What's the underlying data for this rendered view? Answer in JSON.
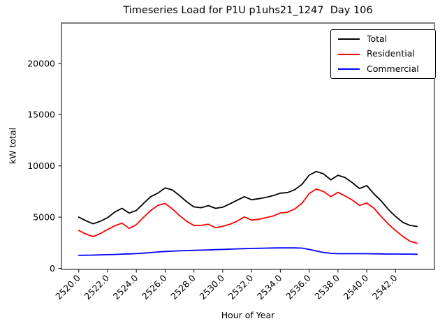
{
  "title": "Timeseries Load for P1U p1uhs21_1247  Day 106",
  "xlabel": "Hour of Year",
  "ylabel": "kW total",
  "chart_data": {
    "type": "line",
    "title": "Timeseries Load for P1U p1uhs21_1247  Day 106",
    "xlabel": "Hour of Year",
    "ylabel": "kW total",
    "grid": false,
    "legend_position": "upper right",
    "xlim": [
      2518.8,
      2544.7
    ],
    "ylim": [
      -100,
      23950
    ],
    "xtick_values": [
      2520,
      2522,
      2524,
      2526,
      2528,
      2530,
      2532,
      2534,
      2536,
      2538,
      2540,
      2542
    ],
    "xtick_labels": [
      "2520.0",
      "2522.0",
      "2524.0",
      "2526.0",
      "2528.0",
      "2530.0",
      "2532.0",
      "2534.0",
      "2536.0",
      "2538.0",
      "2540.0",
      "2542.0"
    ],
    "ytick_values": [
      0,
      5000,
      10000,
      15000,
      20000
    ],
    "ytick_labels": [
      "0",
      "5000",
      "10000",
      "15000",
      "20000"
    ],
    "x": [
      2520.0,
      2520.5,
      2521.0,
      2521.5,
      2522.0,
      2522.5,
      2523.0,
      2523.5,
      2524.0,
      2524.5,
      2525.0,
      2525.5,
      2526.0,
      2526.5,
      2527.0,
      2527.5,
      2528.0,
      2528.5,
      2529.0,
      2529.5,
      2530.0,
      2530.5,
      2531.0,
      2531.5,
      2532.0,
      2532.5,
      2533.0,
      2533.5,
      2534.0,
      2534.5,
      2535.0,
      2535.5,
      2536.0,
      2536.5,
      2537.0,
      2537.5,
      2538.0,
      2538.5,
      2539.0,
      2539.5,
      2540.0,
      2540.5,
      2541.0,
      2541.5,
      2542.0,
      2542.5,
      2543.0,
      2543.5
    ],
    "series": [
      {
        "name": "Total",
        "color": "#000000",
        "values": [
          5000,
          4650,
          4350,
          4600,
          4950,
          5500,
          5860,
          5400,
          5650,
          6340,
          7000,
          7350,
          7850,
          7650,
          7100,
          6500,
          6000,
          5920,
          6130,
          5860,
          5970,
          6300,
          6650,
          7000,
          6700,
          6800,
          6930,
          7100,
          7340,
          7400,
          7680,
          8200,
          9100,
          9460,
          9230,
          8640,
          9090,
          8860,
          8360,
          7790,
          8080,
          7270,
          6590,
          5750,
          5070,
          4500,
          4200,
          4090
        ]
      },
      {
        "name": "Residential",
        "color": "#ff0000",
        "values": [
          3700,
          3350,
          3100,
          3400,
          3800,
          4150,
          4420,
          3900,
          4270,
          4980,
          5650,
          6150,
          6340,
          5800,
          5150,
          4590,
          4180,
          4200,
          4310,
          3970,
          4110,
          4310,
          4610,
          5020,
          4720,
          4790,
          4950,
          5110,
          5410,
          5480,
          5800,
          6350,
          7300,
          7750,
          7500,
          7000,
          7420,
          7060,
          6670,
          6150,
          6380,
          5870,
          5070,
          4320,
          3700,
          3130,
          2650,
          2450
        ]
      },
      {
        "name": "Commercial",
        "color": "#0000ff",
        "values": [
          1270,
          1280,
          1300,
          1320,
          1340,
          1360,
          1390,
          1415,
          1440,
          1490,
          1540,
          1600,
          1650,
          1680,
          1710,
          1740,
          1760,
          1780,
          1800,
          1825,
          1850,
          1875,
          1900,
          1925,
          1950,
          1960,
          1980,
          1990,
          2000,
          2000,
          2000,
          1980,
          1850,
          1700,
          1550,
          1470,
          1430,
          1430,
          1430,
          1430,
          1430,
          1420,
          1410,
          1400,
          1400,
          1390,
          1390,
          1380
        ]
      }
    ]
  }
}
